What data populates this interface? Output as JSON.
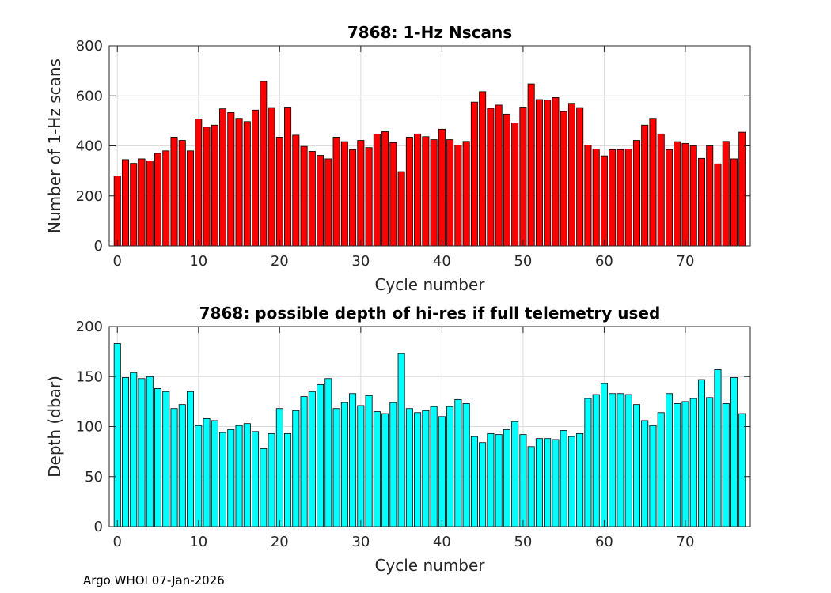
{
  "footer": "Argo WHOI 07-Jan-2026",
  "chart_data": [
    {
      "type": "bar",
      "title": "7868: 1-Hz Nscans",
      "xlabel": "Cycle number",
      "ylabel": "Number of 1-Hz scans",
      "xlim": [
        -1,
        78
      ],
      "ylim": [
        0,
        800
      ],
      "xticks": [
        0,
        10,
        20,
        30,
        40,
        50,
        60,
        70
      ],
      "yticks": [
        0,
        200,
        400,
        600,
        800
      ],
      "grid": true,
      "color": "#ff0000",
      "x": [
        0,
        1,
        2,
        3,
        4,
        5,
        6,
        7,
        8,
        9,
        10,
        11,
        12,
        13,
        14,
        15,
        16,
        17,
        18,
        19,
        20,
        21,
        22,
        23,
        24,
        25,
        26,
        27,
        28,
        29,
        30,
        31,
        32,
        33,
        34,
        35,
        36,
        37,
        38,
        39,
        40,
        41,
        42,
        43,
        44,
        45,
        46,
        47,
        48,
        49,
        50,
        51,
        52,
        53,
        54,
        55,
        56,
        57,
        58,
        59,
        60,
        61,
        62,
        63,
        64,
        65,
        66,
        67,
        68,
        69,
        70,
        71,
        72,
        73,
        74,
        75,
        76,
        77
      ],
      "values": [
        280,
        345,
        330,
        348,
        340,
        370,
        380,
        435,
        422,
        380,
        507,
        475,
        483,
        548,
        533,
        510,
        497,
        543,
        658,
        553,
        435,
        555,
        443,
        398,
        378,
        362,
        348,
        435,
        417,
        385,
        422,
        393,
        447,
        457,
        413,
        297,
        435,
        448,
        437,
        425,
        467,
        425,
        403,
        418,
        575,
        617,
        550,
        563,
        527,
        492,
        555,
        648,
        585,
        583,
        593,
        537,
        570,
        553,
        403,
        387,
        360,
        385,
        385,
        387,
        422,
        483,
        510,
        448,
        385,
        417,
        410,
        400,
        350,
        400,
        328,
        418,
        348,
        455
      ]
    },
    {
      "type": "bar",
      "title": "7868: possible depth of hi-res if full telemetry used",
      "xlabel": "Cycle number",
      "ylabel": "Depth (dbar)",
      "xlim": [
        -1,
        78
      ],
      "ylim": [
        0,
        200
      ],
      "xticks": [
        0,
        10,
        20,
        30,
        40,
        50,
        60,
        70
      ],
      "yticks": [
        0,
        50,
        100,
        150,
        200
      ],
      "grid": true,
      "color": "#00ffff",
      "x": [
        0,
        1,
        2,
        3,
        4,
        5,
        6,
        7,
        8,
        9,
        10,
        11,
        12,
        13,
        14,
        15,
        16,
        17,
        18,
        19,
        20,
        21,
        22,
        23,
        24,
        25,
        26,
        27,
        28,
        29,
        30,
        31,
        32,
        33,
        34,
        35,
        36,
        37,
        38,
        39,
        40,
        41,
        42,
        43,
        44,
        45,
        46,
        47,
        48,
        49,
        50,
        51,
        52,
        53,
        54,
        55,
        56,
        57,
        58,
        59,
        60,
        61,
        62,
        63,
        64,
        65,
        66,
        67,
        68,
        69,
        70,
        71,
        72,
        73,
        74,
        75,
        76,
        77
      ],
      "values": [
        183,
        149,
        154,
        148,
        150,
        138,
        135,
        118,
        122,
        135,
        101,
        108,
        106,
        94,
        97,
        101,
        103,
        95,
        78,
        93,
        118,
        93,
        116,
        130,
        135,
        142,
        148,
        118,
        124,
        133,
        121,
        131,
        115,
        113,
        124,
        173,
        118,
        114,
        116,
        120,
        110,
        120,
        127,
        123,
        90,
        84,
        93,
        92,
        97,
        105,
        92,
        80,
        88,
        88,
        87,
        96,
        90,
        93,
        128,
        132,
        143,
        133,
        133,
        132,
        122,
        106,
        101,
        114,
        133,
        123,
        125,
        128,
        147,
        129,
        157,
        123,
        149,
        113
      ]
    }
  ]
}
